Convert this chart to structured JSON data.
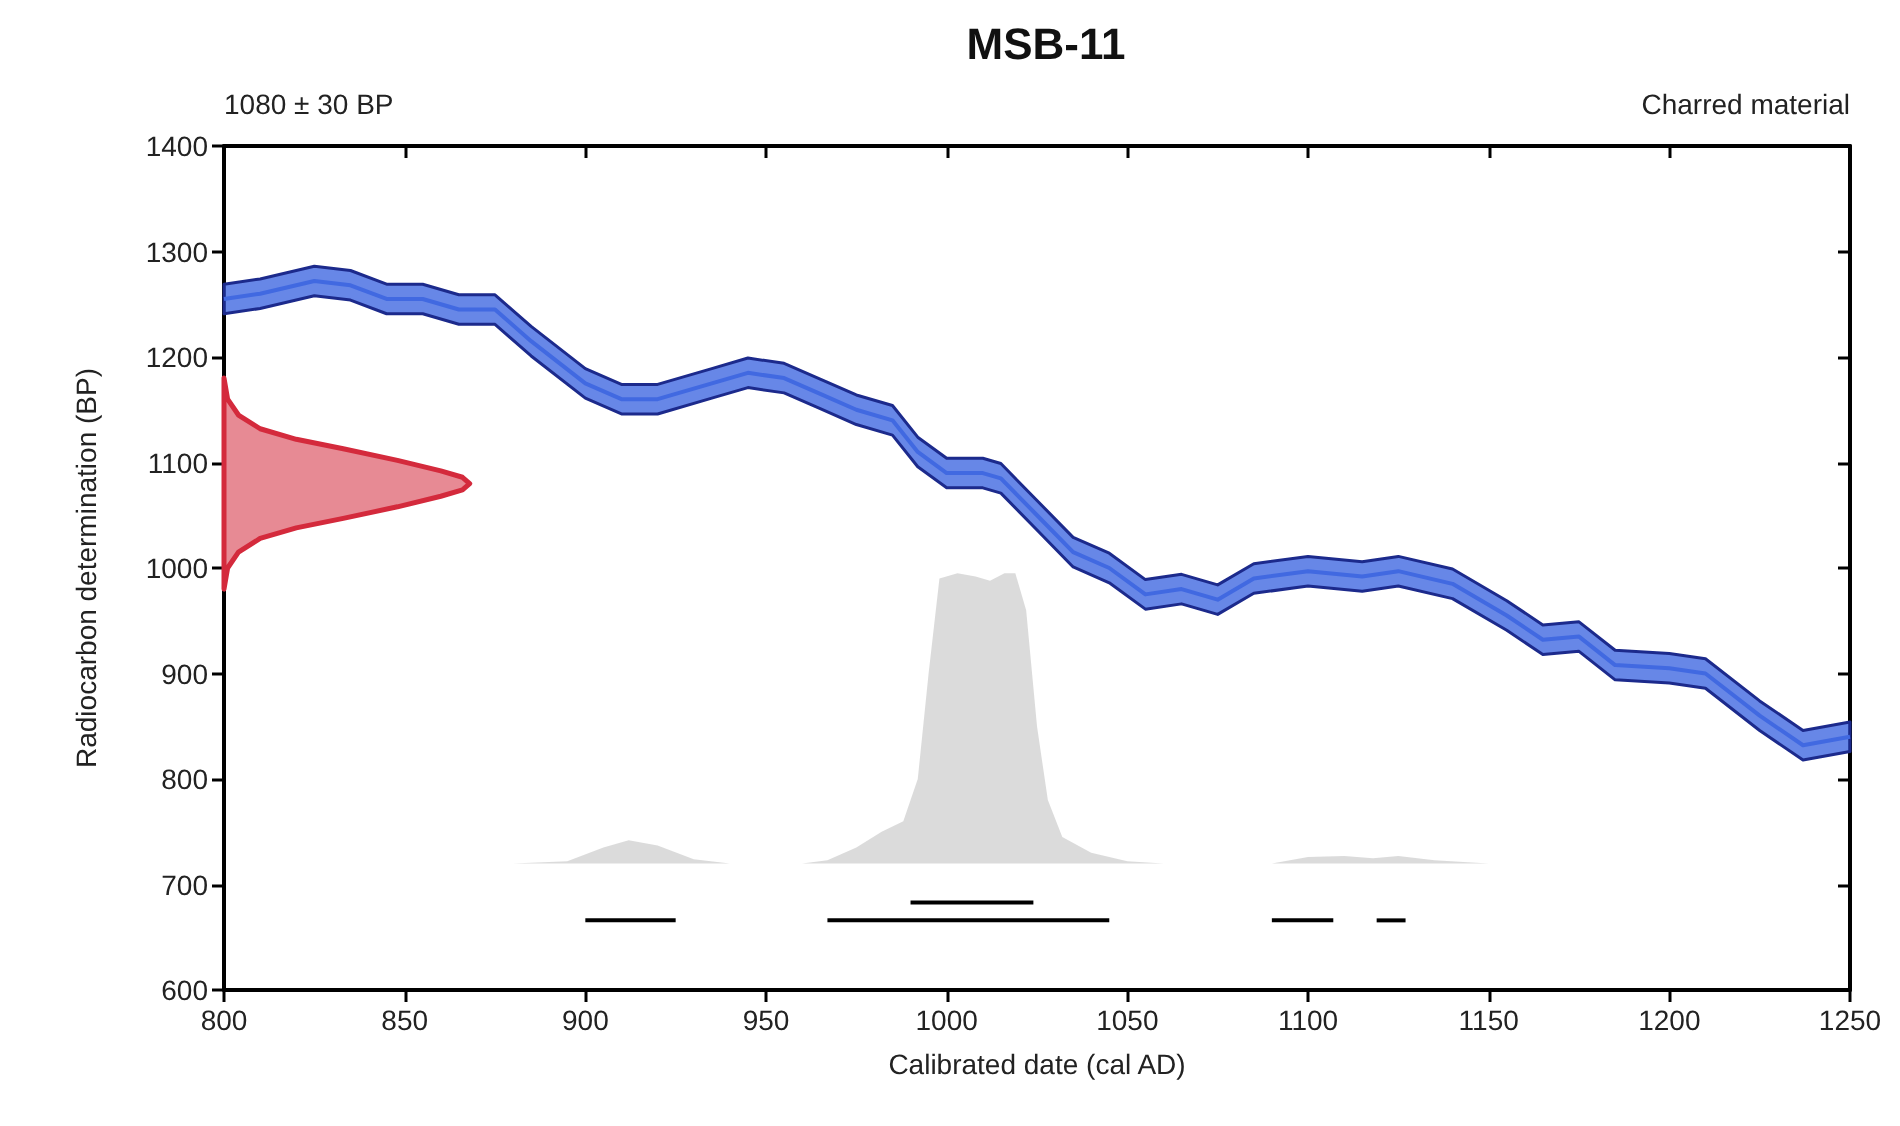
{
  "chart_data": {
    "type": "line",
    "title": "MSB-11",
    "xlabel": "Calibrated date (cal AD)",
    "ylabel": "Radiocarbon determination (BP)",
    "annotations": [
      "1080 ± 30 BP",
      "Charred material"
    ],
    "xlim": [
      800,
      1250
    ],
    "xticks": [
      800,
      850,
      900,
      950,
      1000,
      1050,
      1100,
      1150,
      1200,
      1250
    ],
    "ylim": [
      600,
      1400
    ],
    "yticks": [
      600,
      700,
      800,
      900,
      1000,
      1100,
      1200,
      1300,
      1400
    ],
    "series": [
      {
        "color": "#4169e1",
        "x": [
          800,
          810,
          825,
          835,
          845,
          855,
          865,
          875,
          885,
          900,
          910,
          920,
          935,
          945,
          955,
          965,
          975,
          985,
          992,
          1000,
          1010,
          1015,
          1025,
          1035,
          1045,
          1055,
          1065,
          1075,
          1085,
          1100,
          1115,
          1125,
          1140,
          1155,
          1165,
          1175,
          1185,
          1200,
          1210,
          1225,
          1237,
          1250
        ],
        "values": [
          1255,
          1260,
          1272,
          1268,
          1255,
          1255,
          1245,
          1245,
          1215,
          1175,
          1160,
          1160,
          1175,
          1185,
          1180,
          1165,
          1150,
          1140,
          1110,
          1090,
          1090,
          1085,
          1050,
          1015,
          1000,
          975,
          980,
          970,
          990,
          997,
          992,
          997,
          985,
          955,
          932,
          935,
          908,
          905,
          900,
          860,
          832,
          840
        ],
        "lower": [
          1241,
          1246,
          1258,
          1254,
          1241,
          1241,
          1231,
          1231,
          1201,
          1161,
          1146,
          1146,
          1161,
          1171,
          1166,
          1151,
          1136,
          1126,
          1096,
          1076,
          1076,
          1071,
          1036,
          1001,
          986,
          961,
          966,
          956,
          976,
          983,
          978,
          983,
          971,
          941,
          918,
          921,
          894,
          891,
          886,
          846,
          818,
          826
        ],
        "upper": [
          1269,
          1274,
          1286,
          1282,
          1269,
          1269,
          1259,
          1259,
          1229,
          1189,
          1174,
          1174,
          1189,
          1199,
          1194,
          1179,
          1164,
          1154,
          1124,
          1104,
          1104,
          1099,
          1064,
          1029,
          1014,
          989,
          994,
          984,
          1004,
          1011,
          1006,
          1011,
          999,
          969,
          946,
          949,
          922,
          919,
          914,
          874,
          846,
          854
        ]
      },
      {
        "type": "area",
        "color": "#d42a3c",
        "x": [
          800,
          801,
          804,
          810,
          820,
          833,
          848,
          860,
          866,
          868,
          866,
          860,
          848,
          833,
          820,
          810,
          804,
          801,
          800
        ],
        "values": [
          1180,
          1160,
          1145,
          1132,
          1122,
          1113,
          1102,
          1092,
          1086,
          1080,
          1074,
          1068,
          1058,
          1047,
          1038,
          1028,
          1015,
          1000,
          980
        ]
      },
      {
        "type": "area",
        "color": "#bdbdbd",
        "x": [
          880,
          895,
          905,
          912,
          920,
          930,
          940,
          960,
          967,
          975,
          982,
          988,
          992,
          995,
          998,
          1003,
          1008,
          1012,
          1016,
          1019,
          1022,
          1025,
          1028,
          1032,
          1040,
          1050,
          1060,
          1090,
          1100,
          1110,
          1118,
          1125,
          1135,
          1150
        ],
        "values": [
          720,
          722,
          735,
          742,
          737,
          724,
          720,
          720,
          723,
          735,
          750,
          760,
          800,
          900,
          990,
          995,
          992,
          988,
          995,
          995,
          960,
          850,
          780,
          745,
          730,
          722,
          720,
          720,
          726,
          727,
          725,
          727,
          723,
          720
        ]
      },
      {
        "color": "#000000",
        "x": [
          990,
          1024
        ],
        "values": [
          683,
          683
        ]
      },
      {
        "color": "#000000",
        "x": [
          900,
          925
        ],
        "values": [
          666,
          666
        ]
      },
      {
        "color": "#000000",
        "x": [
          967,
          1045
        ],
        "values": [
          666,
          666
        ]
      },
      {
        "color": "#000000",
        "x": [
          1090,
          1107
        ],
        "values": [
          666,
          666
        ]
      },
      {
        "color": "#000000",
        "x": [
          1119,
          1127
        ],
        "values": [
          666,
          666
        ]
      }
    ]
  }
}
